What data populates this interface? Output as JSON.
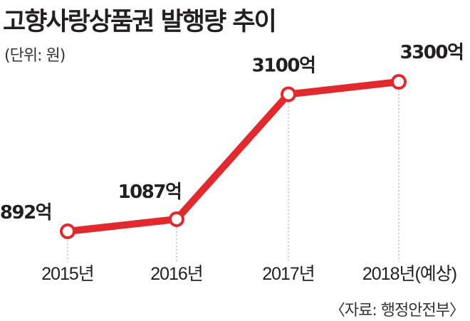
{
  "title": "고향사랑상품권 발행량 추이",
  "unit_label": "(단위: 원)",
  "source": "〈자료: 행정안전부〉",
  "colors": {
    "line": "#e1292e",
    "marker_fill": "#ffffff",
    "guide": "#9a9a9a",
    "text": "#231f20"
  },
  "chart_data": {
    "type": "line",
    "categories": [
      "2015년",
      "2016년",
      "2017년",
      "2018년(예상)"
    ],
    "values": [
      892,
      1087,
      3100,
      3300
    ],
    "data_labels": [
      "892억",
      "1087억",
      "3100억",
      "3300억"
    ],
    "title": "고향사랑상품권 발행량 추이",
    "xlabel": "",
    "ylabel": "",
    "ylim": [
      0,
      3500
    ],
    "grid": false,
    "legend": "none"
  }
}
